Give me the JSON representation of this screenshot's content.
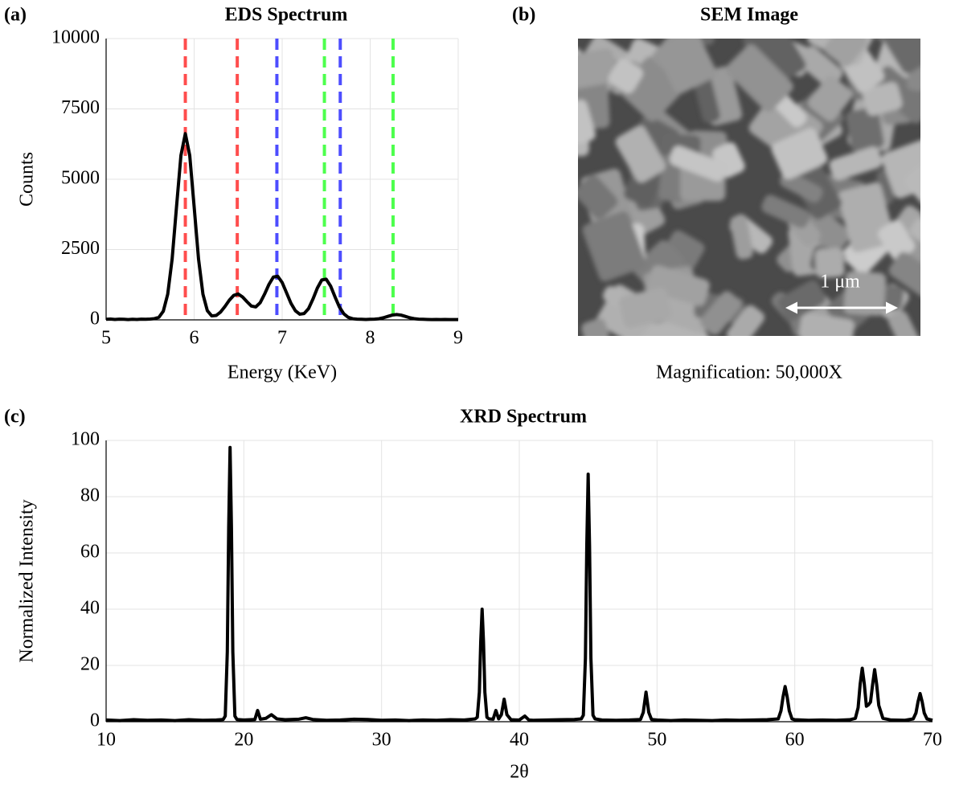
{
  "chart_data": [
    {
      "type": "line",
      "panel_label": "(a)",
      "title": "EDS Spectrum",
      "xlabel": "Energy (KeV)",
      "ylabel": "Counts",
      "x": [
        5.0,
        5.05,
        5.1,
        5.15,
        5.2,
        5.25,
        5.3,
        5.35,
        5.4,
        5.45,
        5.5,
        5.55,
        5.6,
        5.65,
        5.7,
        5.75,
        5.8,
        5.85,
        5.9,
        5.95,
        6.0,
        6.05,
        6.1,
        6.15,
        6.2,
        6.25,
        6.3,
        6.35,
        6.4,
        6.45,
        6.5,
        6.55,
        6.6,
        6.65,
        6.7,
        6.75,
        6.8,
        6.85,
        6.9,
        6.95,
        7.0,
        7.05,
        7.1,
        7.15,
        7.2,
        7.25,
        7.3,
        7.35,
        7.4,
        7.45,
        7.5,
        7.55,
        7.6,
        7.65,
        7.7,
        7.75,
        7.8,
        7.85,
        7.9,
        7.95,
        8.0,
        8.05,
        8.1,
        8.15,
        8.2,
        8.25,
        8.3,
        8.35,
        8.4,
        8.45,
        8.5,
        8.55,
        8.6,
        8.65,
        8.7,
        8.75,
        8.8,
        8.85,
        8.9,
        8.95,
        9.0
      ],
      "values": [
        20,
        30,
        15,
        25,
        20,
        10,
        20,
        15,
        25,
        20,
        30,
        45,
        93,
        310,
        913,
        2163,
        4023,
        5845,
        6620,
        5845,
        4023,
        2163,
        913,
        326,
        141,
        156,
        278,
        476,
        700,
        871,
        920,
        814,
        646,
        491,
        461,
        609,
        914,
        1261,
        1522,
        1549,
        1328,
        960,
        589,
        325,
        201,
        226,
        400,
        740,
        1133,
        1417,
        1446,
        1206,
        820,
        460,
        216,
        91,
        41,
        25,
        20,
        15,
        20,
        25,
        40,
        75,
        123,
        170,
        190,
        170,
        123,
        75,
        43,
        25,
        20,
        15,
        10,
        15,
        10,
        15,
        10,
        10,
        10
      ],
      "color": "#000000",
      "vlines": [
        {
          "x": 5.9,
          "color": "#ff4d4d"
        },
        {
          "x": 6.49,
          "color": "#ff4d4d"
        },
        {
          "x": 6.94,
          "color": "#4d4dff"
        },
        {
          "x": 7.66,
          "color": "#4d4dff"
        },
        {
          "x": 7.48,
          "color": "#4dff4d"
        },
        {
          "x": 8.26,
          "color": "#4dff4d"
        }
      ],
      "xlim": [
        5,
        9
      ],
      "ylim": [
        0,
        10000
      ],
      "xticks": [
        5,
        6,
        7,
        8,
        9
      ],
      "yticks": [
        0,
        2500,
        5000,
        7500,
        10000
      ],
      "grid": true
    },
    {
      "type": "line",
      "panel_label": "(c)",
      "title": "XRD Spectrum",
      "xlabel": "2θ",
      "ylabel": "Normalized Intensity",
      "x": [
        10,
        11,
        12,
        13,
        14,
        15,
        16,
        17,
        18,
        18.5,
        18.65,
        18.8,
        18.9,
        19.0,
        19.1,
        19.2,
        19.35,
        19.5,
        20,
        20.8,
        21.0,
        21.2,
        21.6,
        22.0,
        22.4,
        23,
        24,
        24.5,
        25,
        26,
        27,
        28,
        29,
        30,
        31,
        32,
        33,
        34,
        35,
        36,
        36.8,
        36.95,
        37.1,
        37.2,
        37.3,
        37.4,
        37.5,
        37.65,
        37.8,
        38.1,
        38.3,
        38.5,
        38.7,
        38.9,
        39.1,
        39.4,
        40.0,
        40.4,
        40.7,
        41,
        42,
        43,
        44,
        44.5,
        44.65,
        44.8,
        44.9,
        45.0,
        45.1,
        45.2,
        45.35,
        45.5,
        46,
        47,
        48,
        48.8,
        49.0,
        49.2,
        49.4,
        49.6,
        50,
        51,
        52,
        53,
        54,
        55,
        56,
        57,
        58,
        58.8,
        59.0,
        59.15,
        59.3,
        59.45,
        59.6,
        59.8,
        60,
        61,
        62,
        63,
        64,
        64.4,
        64.6,
        64.75,
        64.9,
        65.05,
        65.2,
        65.35,
        65.5,
        65.65,
        65.8,
        65.95,
        66.1,
        66.4,
        67,
        68,
        68.6,
        68.8,
        68.95,
        69.1,
        69.25,
        69.4,
        69.6,
        70
      ],
      "values": [
        0.6,
        0.4,
        0.7,
        0.5,
        0.6,
        0.4,
        0.7,
        0.5,
        0.6,
        0.8,
        2.0,
        24.8,
        69,
        97.5,
        69,
        24.8,
        2.0,
        0.8,
        0.6,
        0.8,
        4,
        0.9,
        1.2,
        2.5,
        1.0,
        0.7,
        0.9,
        1.4,
        0.8,
        0.5,
        0.6,
        0.9,
        0.8,
        0.5,
        0.6,
        0.4,
        0.6,
        0.5,
        0.7,
        0.6,
        1.0,
        1.6,
        10.5,
        28.5,
        40,
        28.5,
        10.5,
        1.6,
        1.0,
        0.9,
        4,
        1.0,
        2.5,
        8,
        2.5,
        0.7,
        0.6,
        2,
        0.6,
        0.5,
        0.6,
        0.7,
        0.8,
        1.0,
        2.3,
        22.5,
        62.5,
        88,
        62.5,
        22.5,
        2.3,
        1.0,
        0.6,
        0.5,
        0.6,
        0.8,
        3.3,
        10.5,
        3.3,
        0.8,
        0.6,
        0.4,
        0.6,
        0.5,
        0.4,
        0.6,
        0.5,
        0.6,
        0.7,
        1.0,
        3.9,
        8.8,
        12.5,
        8.8,
        3.9,
        1.0,
        0.7,
        0.5,
        0.6,
        0.5,
        0.7,
        1.2,
        5.0,
        13.4,
        19,
        13.4,
        5.5,
        6.0,
        7.0,
        13.1,
        18.5,
        13.1,
        5.8,
        1.2,
        0.6,
        0.5,
        1.0,
        3.1,
        7.1,
        10,
        7.1,
        3.1,
        1.0,
        0.5
      ],
      "color": "#000000",
      "xlim": [
        10,
        70
      ],
      "ylim": [
        0,
        100
      ],
      "xticks": [
        10,
        20,
        30,
        40,
        50,
        60,
        70
      ],
      "yticks": [
        0,
        20,
        40,
        60,
        80,
        100
      ],
      "grid": true
    }
  ],
  "sem_panel": {
    "panel_label": "(b)",
    "title": "SEM Image",
    "scale_bar": "1 μm",
    "caption": "Magnification: 50,000X"
  }
}
